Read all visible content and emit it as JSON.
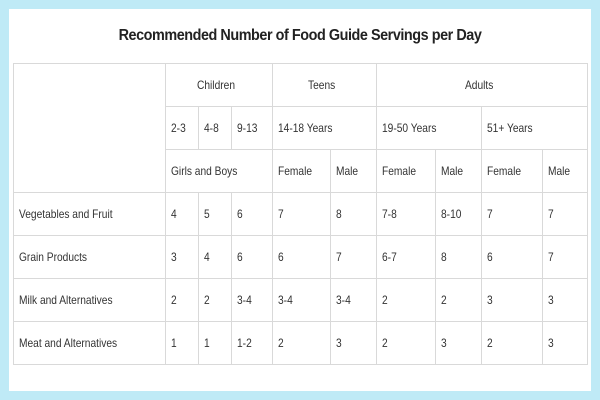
{
  "title": "Recommended Number of Food Guide Servings per Day",
  "headers": {
    "children": "Children",
    "teens": "Teens",
    "adults": "Adults",
    "age_2_3": "2-3",
    "age_4_8": "4-8",
    "age_9_13": "9-13",
    "age_14_18": "14-18 Years",
    "age_19_50": "19-50 Years",
    "age_51_plus": "51+ Years",
    "girls_boys": "Girls and Boys",
    "teen_female": "Female",
    "teen_male": "Male",
    "adult1_female": "Female",
    "adult1_male": "Male",
    "adult2_female": "Female",
    "adult2_male": "Male"
  },
  "rows": [
    {
      "label": "Vegetables and Fruit",
      "values": [
        "4",
        "5",
        "6",
        "7",
        "8",
        "7-8",
        "8-10",
        "7",
        "7"
      ]
    },
    {
      "label": "Grain Products",
      "values": [
        "3",
        "4",
        "6",
        "6",
        "7",
        "6-7",
        "8",
        "6",
        "7"
      ]
    },
    {
      "label": "Milk and Alternatives",
      "values": [
        "2",
        "2",
        "3-4",
        "3-4",
        "3-4",
        "2",
        "2",
        "3",
        "3"
      ]
    },
    {
      "label": "Meat and Alternatives",
      "values": [
        "1",
        "1",
        "1-2",
        "2",
        "3",
        "2",
        "3",
        "2",
        "3"
      ]
    }
  ]
}
